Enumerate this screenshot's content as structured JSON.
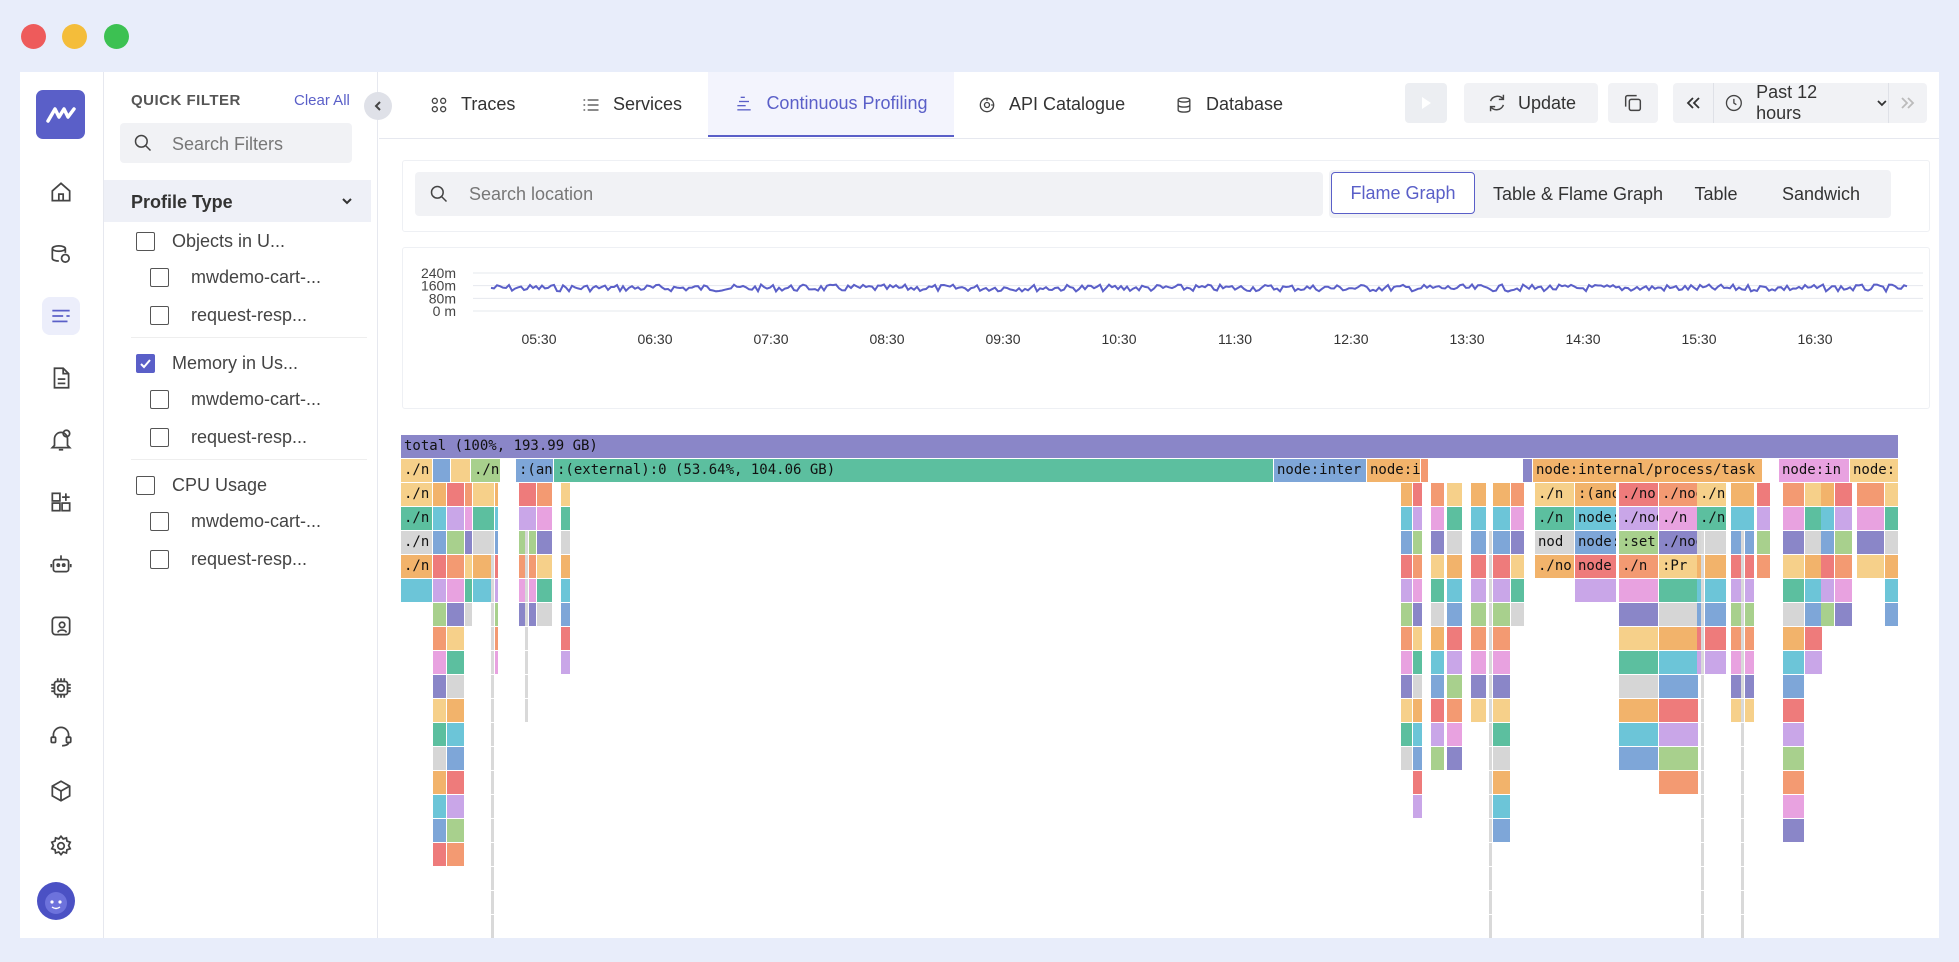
{
  "window": {
    "controls": [
      "close",
      "minimize",
      "maximize"
    ]
  },
  "rail": {
    "items": [
      "home-icon",
      "service-map-icon",
      "profiling-icon",
      "logs-icon",
      "alerts-icon",
      "dashboard-add-icon",
      "bot-icon",
      "synthetics-icon",
      "chip-icon",
      "support-icon",
      "package-icon",
      "settings-icon"
    ],
    "active": "profiling-icon"
  },
  "quick_filter": {
    "title": "QUICK FILTER",
    "clear_all": "Clear All",
    "search_placeholder": "Search Filters",
    "section_title": "Profile Type",
    "items": [
      {
        "label": "Objects in U...",
        "checked": false,
        "level": 0
      },
      {
        "label": "mwdemo-cart-...",
        "checked": false,
        "level": 1
      },
      {
        "label": "request-resp...",
        "checked": false,
        "level": 1
      },
      {
        "label": "Memory in Us...",
        "checked": true,
        "level": 0
      },
      {
        "label": "mwdemo-cart-...",
        "checked": false,
        "level": 1
      },
      {
        "label": "request-resp...",
        "checked": false,
        "level": 1
      },
      {
        "label": "CPU Usage",
        "checked": false,
        "level": 0
      },
      {
        "label": "mwdemo-cart-...",
        "checked": false,
        "level": 1
      },
      {
        "label": "request-resp...",
        "checked": false,
        "level": 1
      }
    ]
  },
  "tabs": [
    {
      "label": "Traces",
      "icon": "traces-icon"
    },
    {
      "label": "Services",
      "icon": "services-icon"
    },
    {
      "label": "Continuous Profiling",
      "icon": "profiling-icon",
      "active": true
    },
    {
      "label": "API Catalogue",
      "icon": "api-icon"
    },
    {
      "label": "Database",
      "icon": "database-icon"
    }
  ],
  "toolbar": {
    "update_label": "Update",
    "time_range": "Past 12 hours"
  },
  "search": {
    "placeholder": "Search location"
  },
  "view_tabs": [
    {
      "label": "Flame Graph",
      "active": true
    },
    {
      "label": "Table & Flame Graph"
    },
    {
      "label": "Table"
    },
    {
      "label": "Sandwich"
    }
  ],
  "chart_data": {
    "type": "line",
    "y_tick_labels": [
      "240m",
      "160m",
      "80m",
      "0 m"
    ],
    "x_tick_labels": [
      "05:30",
      "06:30",
      "07:30",
      "08:30",
      "09:30",
      "10:30",
      "11:30",
      "12:30",
      "13:30",
      "14:30",
      "15:30",
      "16:30"
    ],
    "series_color": "#5a5fc8",
    "note_level_approx": 0.6
  },
  "flame": {
    "total_label": "total (100%, 193.99 GB)",
    "row1": [
      {
        "label": "./n",
        "color": "#f6d08a"
      },
      {
        "label": "",
        "color": "#7ea6d8"
      },
      {
        "label": "",
        "color": "#f6d08a"
      },
      {
        "label": "./n",
        "color": "#a8d08d"
      },
      {
        "label": ":(anc",
        "color": "#7ea6d8"
      },
      {
        "label": ":(external):0 (53.64%, 104.06 GB)",
        "color": "#5cbf9f"
      },
      {
        "label": "node:inter",
        "color": "#7ea6d8"
      },
      {
        "label": "node:i",
        "color": "#f2b36b"
      },
      {
        "label": "node:internal/process/task",
        "color": "#f2b36b"
      },
      {
        "label": "node:in",
        "color": "#e8a2e0"
      },
      {
        "label": "node:",
        "color": "#f6d08a"
      }
    ],
    "deep_labels": [
      "./n",
      "./n",
      "./n",
      "./n",
      "./n",
      "./n",
      "nod",
      "./no",
      ":(anonymous)",
      "node:",
      "node:in",
      "node",
      "./no",
      "./node_modu",
      ":set",
      "./n",
      "./nod",
      "./n",
      "./nod",
      ":Pr",
      "./n",
      "./n"
    ]
  }
}
